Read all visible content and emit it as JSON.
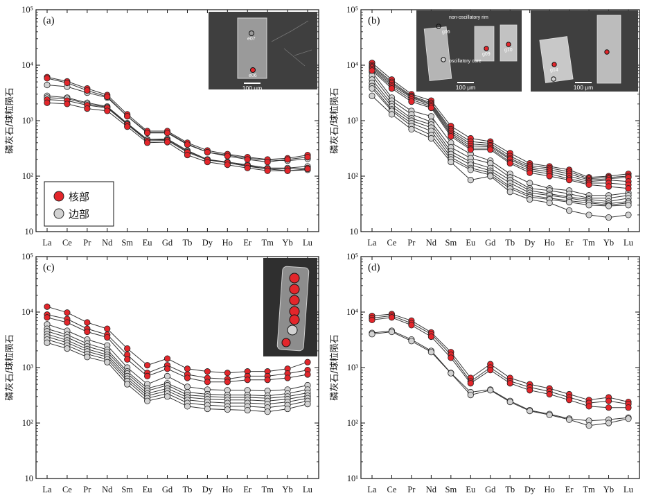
{
  "colors": {
    "core": "#e3262b",
    "rim": "#d2d2d2",
    "line": "#333333",
    "frame": "#111111",
    "inset_bg": "#3f3f3f"
  },
  "legend": {
    "core_label": "核部",
    "rim_label": "边部"
  },
  "chart_data": [
    {
      "type": "line",
      "panel_label": "(a)",
      "yscale": "log",
      "ylabel": "磷灰石/球粒陨石",
      "ylim": [
        10,
        100000
      ],
      "y_tick_labels": [
        "10",
        "10²",
        "10³",
        "10⁴",
        "10⁵"
      ],
      "categories": [
        "La",
        "Ce",
        "Pr",
        "Nd",
        "Sm",
        "Eu",
        "Gd",
        "Tb",
        "Dy",
        "Ho",
        "Er",
        "Tm",
        "Yb",
        "Lu"
      ],
      "inset": {
        "scale_text": "100 μm",
        "spot_labels": [
          "e07",
          "e06"
        ]
      },
      "series": [
        {
          "group": "core",
          "values": [
            6100,
            5100,
            3800,
            2900,
            1300,
            650,
            650,
            400,
            290,
            250,
            220,
            200,
            210,
            240
          ]
        },
        {
          "group": "core",
          "values": [
            5800,
            4800,
            3500,
            2700,
            1200,
            600,
            600,
            370,
            270,
            230,
            200,
            180,
            200,
            220
          ]
        },
        {
          "group": "core",
          "values": [
            2400,
            2300,
            1900,
            1700,
            850,
            430,
            440,
            270,
            195,
            175,
            155,
            135,
            135,
            140
          ]
        },
        {
          "group": "core",
          "values": [
            2100,
            2000,
            1650,
            1500,
            780,
            400,
            410,
            240,
            180,
            160,
            140,
            125,
            125,
            135
          ]
        },
        {
          "group": "rim",
          "values": [
            4400,
            4100,
            3200,
            2600,
            1200,
            620,
            620,
            380,
            270,
            240,
            210,
            195,
            190,
            205
          ]
        },
        {
          "group": "rim",
          "values": [
            2800,
            2600,
            2100,
            1800,
            900,
            460,
            470,
            290,
            200,
            180,
            160,
            140,
            140,
            150
          ]
        },
        {
          "group": "rim",
          "values": [
            2600,
            2500,
            2000,
            1750,
            870,
            450,
            455,
            280,
            200,
            175,
            150,
            135,
            125,
            130
          ]
        }
      ]
    },
    {
      "type": "line",
      "panel_label": "(b)",
      "yscale": "log",
      "ylabel": "磷灰石/球粒陨石",
      "ylim": [
        10,
        100000
      ],
      "y_tick_labels": [
        "10",
        "10²",
        "10³",
        "10⁴",
        "10⁵"
      ],
      "categories": [
        "La",
        "Ce",
        "Pr",
        "Nd",
        "Sm",
        "Eu",
        "Gd",
        "Tb",
        "Dy",
        "Ho",
        "Er",
        "Tm",
        "Yb",
        "Lu"
      ],
      "inset": {
        "scale_text": "100 μm",
        "labels": [
          "non-oscillatory rim",
          "oscillatory core"
        ],
        "spot_labels": [
          "g06",
          "g09",
          "g10",
          "g14"
        ]
      },
      "series": [
        {
          "group": "core",
          "values": [
            11000,
            5500,
            3000,
            2300,
            800,
            480,
            420,
            260,
            170,
            150,
            130,
            95,
            100,
            110
          ]
        },
        {
          "group": "core",
          "values": [
            10000,
            5000,
            2800,
            2100,
            700,
            420,
            390,
            230,
            155,
            140,
            120,
            90,
            95,
            100
          ]
        },
        {
          "group": "core",
          "values": [
            9500,
            4700,
            2700,
            2000,
            650,
            380,
            360,
            210,
            145,
            130,
            110,
            85,
            90,
            95
          ]
        },
        {
          "group": "core",
          "values": [
            9000,
            4400,
            2600,
            1900,
            600,
            350,
            340,
            200,
            135,
            120,
            100,
            80,
            85,
            80
          ]
        },
        {
          "group": "core",
          "values": [
            8500,
            4100,
            2400,
            1800,
            560,
            320,
            320,
            180,
            125,
            110,
            90,
            75,
            75,
            70
          ]
        },
        {
          "group": "core",
          "values": [
            8000,
            3800,
            2200,
            1700,
            520,
            300,
            300,
            170,
            115,
            100,
            85,
            70,
            65,
            60
          ]
        },
        {
          "group": "rim",
          "values": [
            7500,
            2600,
            1500,
            1200,
            400,
            250,
            190,
            110,
            75,
            60,
            55,
            45,
            45,
            50
          ]
        },
        {
          "group": "rim",
          "values": [
            6500,
            2300,
            1300,
            950,
            330,
            210,
            170,
            95,
            60,
            55,
            48,
            40,
            40,
            45
          ]
        },
        {
          "group": "rim",
          "values": [
            5500,
            2000,
            1100,
            850,
            280,
            180,
            140,
            85,
            55,
            48,
            42,
            38,
            35,
            40
          ]
        },
        {
          "group": "rim",
          "values": [
            4800,
            1800,
            1000,
            750,
            250,
            160,
            125,
            75,
            50,
            45,
            40,
            35,
            32,
            35
          ]
        },
        {
          "group": "rim",
          "values": [
            4200,
            1600,
            900,
            650,
            220,
            140,
            115,
            65,
            45,
            40,
            36,
            33,
            30,
            33
          ]
        },
        {
          "group": "rim",
          "values": [
            3800,
            1500,
            800,
            550,
            200,
            130,
            105,
            60,
            42,
            38,
            34,
            30,
            29,
            30
          ]
        },
        {
          "group": "rim",
          "values": [
            2800,
            1300,
            700,
            480,
            180,
            85,
            100,
            52,
            38,
            33,
            24,
            20,
            18,
            20
          ]
        }
      ]
    },
    {
      "type": "line",
      "panel_label": "(c)",
      "yscale": "log",
      "ylabel": "磷灰石/球粒陨石",
      "ylim": [
        10,
        100000
      ],
      "y_tick_labels": [
        "10",
        "10²",
        "10³",
        "10⁴",
        "10⁵"
      ],
      "categories": [
        "La",
        "Ce",
        "Pr",
        "Nd",
        "Sm",
        "Eu",
        "Gd",
        "Tb",
        "Dy",
        "Ho",
        "Er",
        "Tm",
        "Yb",
        "Lu"
      ],
      "series": [
        {
          "group": "core",
          "values": [
            12500,
            9800,
            6500,
            5000,
            2200,
            1100,
            1450,
            950,
            850,
            800,
            850,
            850,
            950,
            1250
          ]
        },
        {
          "group": "core",
          "values": [
            9000,
            7500,
            5000,
            3900,
            1700,
            800,
            1100,
            750,
            650,
            620,
            700,
            700,
            780,
            900
          ]
        },
        {
          "group": "core",
          "values": [
            8000,
            6500,
            4400,
            3500,
            1400,
            700,
            950,
            650,
            550,
            550,
            600,
            600,
            650,
            750
          ]
        },
        {
          "group": "rim",
          "values": [
            6000,
            4600,
            3200,
            2500,
            1000,
            500,
            700,
            450,
            400,
            390,
            390,
            380,
            400,
            480
          ]
        },
        {
          "group": "rim",
          "values": [
            5000,
            3900,
            2700,
            2100,
            850,
            420,
            520,
            360,
            330,
            320,
            320,
            310,
            340,
            400
          ]
        },
        {
          "group": "rim",
          "values": [
            4500,
            3500,
            2400,
            1900,
            780,
            380,
            480,
            320,
            300,
            290,
            290,
            280,
            300,
            350
          ]
        },
        {
          "group": "rim",
          "values": [
            4000,
            3100,
            2150,
            1700,
            700,
            340,
            420,
            290,
            270,
            260,
            260,
            250,
            270,
            310
          ]
        },
        {
          "group": "rim",
          "values": [
            3600,
            2800,
            1950,
            1550,
            630,
            310,
            380,
            260,
            240,
            230,
            230,
            220,
            240,
            280
          ]
        },
        {
          "group": "rim",
          "values": [
            3200,
            2500,
            1750,
            1400,
            570,
            280,
            340,
            230,
            210,
            200,
            200,
            190,
            210,
            250
          ]
        },
        {
          "group": "rim",
          "values": [
            2800,
            2200,
            1550,
            1250,
            500,
            250,
            300,
            200,
            180,
            175,
            170,
            160,
            180,
            220
          ]
        }
      ]
    },
    {
      "type": "line",
      "panel_label": "(d)",
      "yscale": "log",
      "ylabel": "磷灰石/球粒陨石",
      "ylim": [
        10,
        100000
      ],
      "y_tick_labels": [
        "10¹",
        "10²",
        "10³",
        "10⁴",
        "10⁵"
      ],
      "categories": [
        "La",
        "Ce",
        "Pr",
        "Nd",
        "Sm",
        "Eu",
        "Gd",
        "Tb",
        "Dy",
        "Ho",
        "Er",
        "Tm",
        "Yb",
        "Lu"
      ],
      "series": [
        {
          "group": "core",
          "values": [
            8500,
            9200,
            7000,
            4300,
            1900,
            650,
            1150,
            650,
            500,
            420,
            330,
            260,
            290,
            240
          ]
        },
        {
          "group": "core",
          "values": [
            7800,
            8600,
            6300,
            4000,
            1700,
            560,
            1000,
            570,
            440,
            370,
            290,
            230,
            250,
            220
          ]
        },
        {
          "group": "core",
          "values": [
            7200,
            8000,
            5800,
            3600,
            1500,
            520,
            900,
            520,
            390,
            330,
            260,
            200,
            190,
            190
          ]
        },
        {
          "group": "rim",
          "values": [
            4200,
            4600,
            3200,
            2000,
            800,
            360,
            400,
            250,
            170,
            145,
            120,
            110,
            115,
            125
          ]
        },
        {
          "group": "rim",
          "values": [
            4000,
            4400,
            3000,
            1900,
            790,
            320,
            390,
            240,
            165,
            140,
            115,
            90,
            100,
            120
          ]
        }
      ]
    }
  ]
}
